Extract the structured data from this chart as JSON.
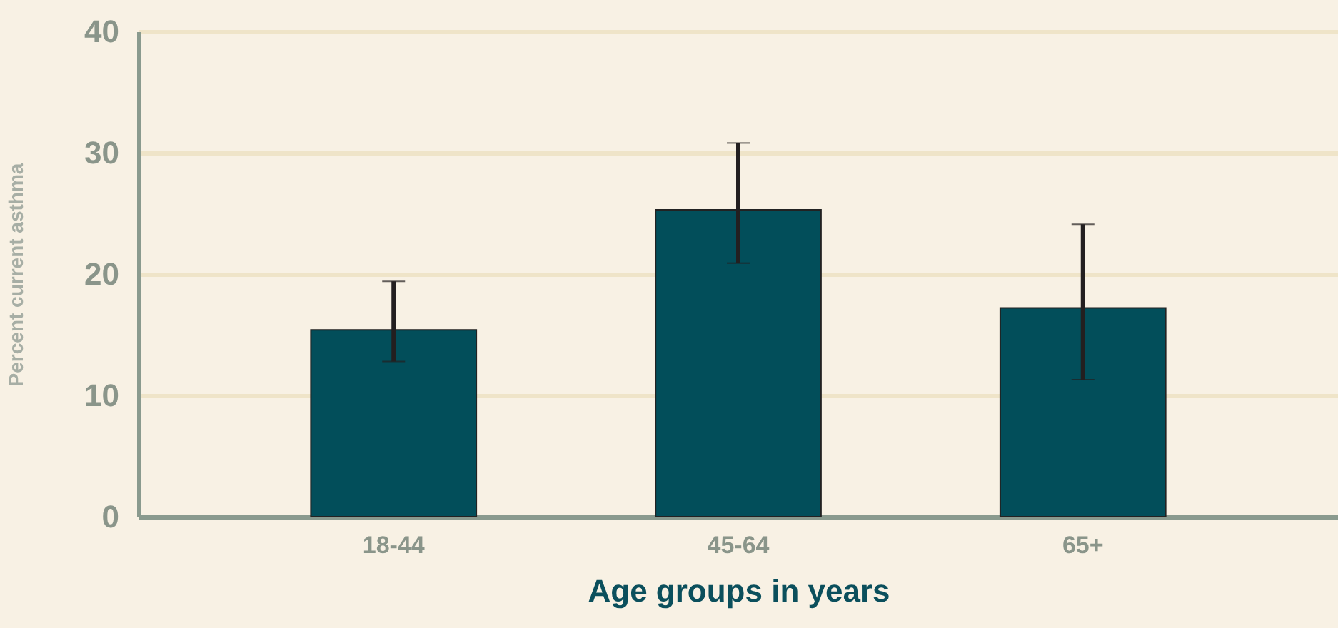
{
  "chart_data": {
    "type": "bar",
    "xlabel": "Age groups in years",
    "ylabel": "Percent current asthma",
    "categories": [
      "18-44",
      "45-64",
      "65+"
    ],
    "values": [
      15.4,
      25.3,
      17.2
    ],
    "color": "#024e5a",
    "errors": [
      [
        12.8,
        19.4
      ],
      [
        20.9,
        30.8
      ],
      [
        11.3,
        24.1
      ]
    ],
    "ylim": [
      0,
      40
    ],
    "yticks": [
      0,
      10,
      20,
      30,
      40
    ],
    "grid": "y"
  }
}
